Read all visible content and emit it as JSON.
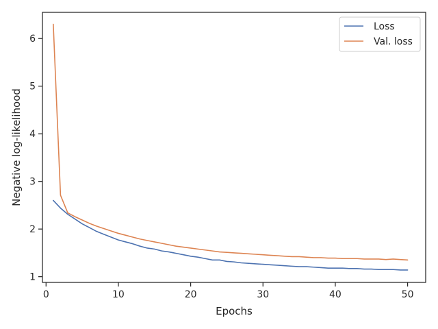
{
  "chart_data": {
    "type": "line",
    "title": "",
    "xlabel": "Epochs",
    "ylabel": "Negative log-likelihood",
    "xlim": [
      -0.5,
      52.5
    ],
    "ylim": [
      0.88,
      6.55
    ],
    "xticks": [
      0,
      10,
      20,
      30,
      40,
      50
    ],
    "yticks": [
      1,
      2,
      3,
      4,
      5,
      6
    ],
    "grid": false,
    "legend_position": "top-right",
    "x": [
      1,
      2,
      3,
      4,
      5,
      6,
      7,
      8,
      9,
      10,
      11,
      12,
      13,
      14,
      15,
      16,
      17,
      18,
      19,
      20,
      21,
      22,
      23,
      24,
      25,
      26,
      27,
      28,
      29,
      30,
      31,
      32,
      33,
      34,
      35,
      36,
      37,
      38,
      39,
      40,
      41,
      42,
      43,
      44,
      45,
      46,
      47,
      48,
      49,
      50
    ],
    "series": [
      {
        "name": "Loss",
        "color": "#4c72b0",
        "values": [
          2.6,
          2.44,
          2.31,
          2.21,
          2.11,
          2.03,
          1.95,
          1.89,
          1.83,
          1.77,
          1.73,
          1.69,
          1.64,
          1.6,
          1.58,
          1.54,
          1.52,
          1.49,
          1.46,
          1.43,
          1.41,
          1.38,
          1.35,
          1.35,
          1.32,
          1.31,
          1.29,
          1.28,
          1.27,
          1.26,
          1.25,
          1.24,
          1.23,
          1.22,
          1.21,
          1.21,
          1.2,
          1.19,
          1.18,
          1.18,
          1.18,
          1.17,
          1.17,
          1.16,
          1.16,
          1.15,
          1.15,
          1.15,
          1.14,
          1.14
        ]
      },
      {
        "name": "Val. loss",
        "color": "#dd8452",
        "values": [
          6.3,
          2.71,
          2.34,
          2.26,
          2.19,
          2.12,
          2.06,
          2.01,
          1.96,
          1.91,
          1.87,
          1.83,
          1.79,
          1.76,
          1.73,
          1.7,
          1.67,
          1.64,
          1.62,
          1.6,
          1.58,
          1.56,
          1.54,
          1.52,
          1.51,
          1.5,
          1.49,
          1.48,
          1.47,
          1.46,
          1.45,
          1.44,
          1.43,
          1.42,
          1.42,
          1.41,
          1.4,
          1.4,
          1.39,
          1.39,
          1.38,
          1.38,
          1.38,
          1.37,
          1.37,
          1.37,
          1.36,
          1.37,
          1.36,
          1.35
        ]
      }
    ]
  }
}
